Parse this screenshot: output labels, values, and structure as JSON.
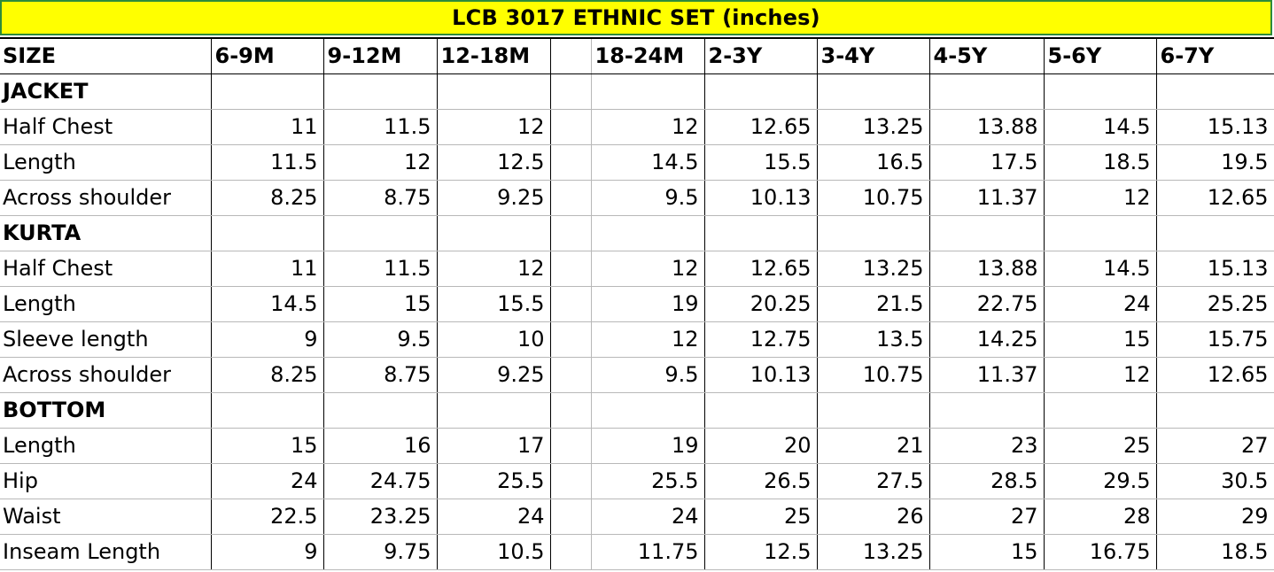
{
  "title": "LCB 3017 ETHNIC SET (inches)",
  "colors": {
    "title_background": "#ffff00",
    "title_border": "#2e8b3a"
  },
  "table": {
    "size_label": "SIZE",
    "sizes": [
      "6-9M",
      "9-12M",
      "12-18M",
      "18-24M",
      "2-3Y",
      "3-4Y",
      "4-5Y",
      "5-6Y",
      "6-7Y"
    ],
    "sections": [
      {
        "name": "JACKET",
        "rows": [
          {
            "label": "Half Chest",
            "values": [
              "11",
              "11.5",
              "12",
              "12",
              "12.65",
              "13.25",
              "13.88",
              "14.5",
              "15.13"
            ]
          },
          {
            "label": "Length",
            "values": [
              "11.5",
              "12",
              "12.5",
              "14.5",
              "15.5",
              "16.5",
              "17.5",
              "18.5",
              "19.5"
            ]
          },
          {
            "label": "Across shoulder",
            "values": [
              "8.25",
              "8.75",
              "9.25",
              "9.5",
              "10.13",
              "10.75",
              "11.37",
              "12",
              "12.65"
            ]
          }
        ]
      },
      {
        "name": "KURTA",
        "rows": [
          {
            "label": "Half Chest",
            "values": [
              "11",
              "11.5",
              "12",
              "12",
              "12.65",
              "13.25",
              "13.88",
              "14.5",
              "15.13"
            ]
          },
          {
            "label": "Length",
            "values": [
              "14.5",
              "15",
              "15.5",
              "19",
              "20.25",
              "21.5",
              "22.75",
              "24",
              "25.25"
            ]
          },
          {
            "label": "Sleeve length",
            "values": [
              "9",
              "9.5",
              "10",
              "12",
              "12.75",
              "13.5",
              "14.25",
              "15",
              "15.75"
            ]
          },
          {
            "label": "Across shoulder",
            "values": [
              "8.25",
              "8.75",
              "9.25",
              "9.5",
              "10.13",
              "10.75",
              "11.37",
              "12",
              "12.65"
            ]
          }
        ]
      },
      {
        "name": "BOTTOM",
        "rows": [
          {
            "label": "Length",
            "values": [
              "15",
              "16",
              "17",
              "19",
              "20",
              "21",
              "23",
              "25",
              "27"
            ]
          },
          {
            "label": "Hip",
            "values": [
              "24",
              "24.75",
              "25.5",
              "25.5",
              "26.5",
              "27.5",
              "28.5",
              "29.5",
              "30.5"
            ]
          },
          {
            "label": "Waist",
            "values": [
              "22.5",
              "23.25",
              "24",
              "24",
              "25",
              "26",
              "27",
              "28",
              "29"
            ]
          },
          {
            "label": "Inseam Length",
            "values": [
              "9",
              "9.75",
              "10.5",
              "11.75",
              "12.5",
              "13.25",
              "15",
              "16.75",
              "18.5"
            ]
          }
        ]
      }
    ]
  }
}
